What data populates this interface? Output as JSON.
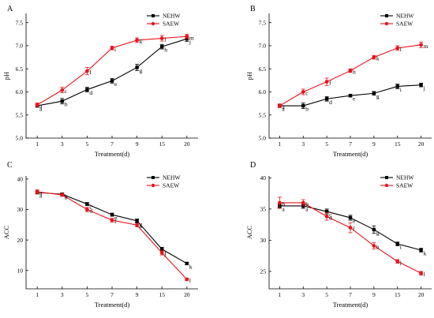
{
  "colors": {
    "nehw": "#000000",
    "saew": "#e8141b"
  },
  "chart_data": [
    {
      "panel": "A",
      "type": "line",
      "xlabel": "Treatment(d)",
      "ylabel": "pH",
      "categories": [
        "1",
        "3",
        "5",
        "7",
        "9",
        "15",
        "20"
      ],
      "ylim": [
        5.0,
        7.7
      ],
      "yticks": [
        "5.0",
        "5.5",
        "6.0",
        "6.5",
        "7.0",
        "7.5"
      ],
      "legend": "top-right",
      "series": [
        {
          "name": "NEHW",
          "color": "#000000",
          "marker": "square",
          "values": [
            5.7,
            5.8,
            6.05,
            6.24,
            6.53,
            6.98,
            7.15
          ],
          "errors": [
            0.03,
            0.06,
            0.05,
            0.05,
            0.07,
            0.05,
            0.06
          ],
          "labels": [
            "a",
            "b",
            "d",
            "e",
            "g",
            "h",
            "j"
          ]
        },
        {
          "name": "SAEW",
          "color": "#e8141b",
          "marker": "circle",
          "values": [
            5.72,
            6.04,
            6.45,
            6.95,
            7.12,
            7.16,
            7.2
          ],
          "errors": [
            0.04,
            0.06,
            0.08,
            0.04,
            0.05,
            0.06,
            0.05
          ],
          "labels": [
            "a",
            "c",
            "f",
            "i",
            "k",
            "l",
            "m"
          ]
        }
      ]
    },
    {
      "panel": "B",
      "type": "line",
      "xlabel": "Treatment(d)",
      "ylabel": "pH",
      "categories": [
        "1",
        "3",
        "5",
        "7",
        "9",
        "15",
        "20"
      ],
      "ylim": [
        5.0,
        7.7
      ],
      "yticks": [
        "5.0",
        "5.5",
        "6.0",
        "6.5",
        "7.0",
        "7.5"
      ],
      "legend": "top-right",
      "series": [
        {
          "name": "NEHW",
          "color": "#000000",
          "marker": "square",
          "values": [
            5.7,
            5.7,
            5.85,
            5.92,
            5.97,
            6.12,
            6.15
          ],
          "errors": [
            0.03,
            0.06,
            0.05,
            0.03,
            0.04,
            0.05,
            0.04
          ],
          "labels": [
            "a",
            "b",
            "d",
            "e",
            "g",
            "i",
            "j"
          ]
        },
        {
          "name": "SAEW",
          "color": "#e8141b",
          "marker": "circle",
          "values": [
            5.7,
            6.0,
            6.22,
            6.46,
            6.75,
            6.95,
            7.02
          ],
          "errors": [
            0.04,
            0.06,
            0.08,
            0.04,
            0.04,
            0.05,
            0.06
          ],
          "labels": [
            "a",
            "c",
            "f",
            "h",
            "k",
            "l",
            "m"
          ]
        }
      ]
    },
    {
      "panel": "C",
      "type": "line",
      "xlabel": "Treatment(d)",
      "ylabel": "ACC",
      "categories": [
        "1",
        "3",
        "5",
        "7",
        "9",
        "15",
        "20"
      ],
      "ylim": [
        4,
        41
      ],
      "yticks": [
        "10",
        "20",
        "30",
        "40"
      ],
      "legend": "top-right",
      "series": [
        {
          "name": "NEHW",
          "color": "#000000",
          "marker": "square",
          "values": [
            35.6,
            35.0,
            31.8,
            28.3,
            26.3,
            17.0,
            12.3
          ],
          "errors": [
            0.5,
            0.4,
            0.5,
            0.5,
            0.6,
            0.6,
            0.4
          ],
          "labels": [
            "a",
            "a",
            "c",
            "e",
            "g",
            "i",
            "k"
          ]
        },
        {
          "name": "SAEW",
          "color": "#e8141b",
          "marker": "circle",
          "values": [
            35.8,
            34.8,
            30.0,
            26.5,
            24.9,
            15.8,
            7.1
          ],
          "errors": [
            0.7,
            0.5,
            0.7,
            0.6,
            0.6,
            0.7,
            0.4
          ],
          "labels": [
            "a",
            "b",
            "d",
            "f",
            "h",
            "j",
            "l"
          ]
        }
      ]
    },
    {
      "panel": "D",
      "type": "line",
      "xlabel": "Treatment(d)",
      "ylabel": "ACC",
      "categories": [
        "1",
        "3",
        "5",
        "7",
        "9",
        "15",
        "20"
      ],
      "ylim": [
        22.2,
        40.3
      ],
      "yticks": [
        "25",
        "30",
        "35",
        "40"
      ],
      "legend": "top-right",
      "series": [
        {
          "name": "NEHW",
          "color": "#000000",
          "marker": "square",
          "values": [
            35.5,
            35.5,
            34.6,
            33.6,
            31.7,
            29.4,
            28.4
          ],
          "errors": [
            0.3,
            0.4,
            0.4,
            0.4,
            0.6,
            0.3,
            0.3
          ],
          "labels": [
            "a",
            "a",
            "c",
            "e",
            "g",
            "i",
            "k"
          ]
        },
        {
          "name": "SAEW",
          "color": "#e8141b",
          "marker": "circle",
          "values": [
            36.0,
            36.0,
            33.8,
            32.0,
            29.1,
            26.6,
            24.7
          ],
          "errors": [
            0.9,
            0.5,
            0.6,
            0.8,
            0.5,
            0.3,
            0.3
          ],
          "labels": [
            "b",
            "b",
            "d",
            "f",
            "h",
            "j",
            "l"
          ]
        }
      ]
    }
  ]
}
